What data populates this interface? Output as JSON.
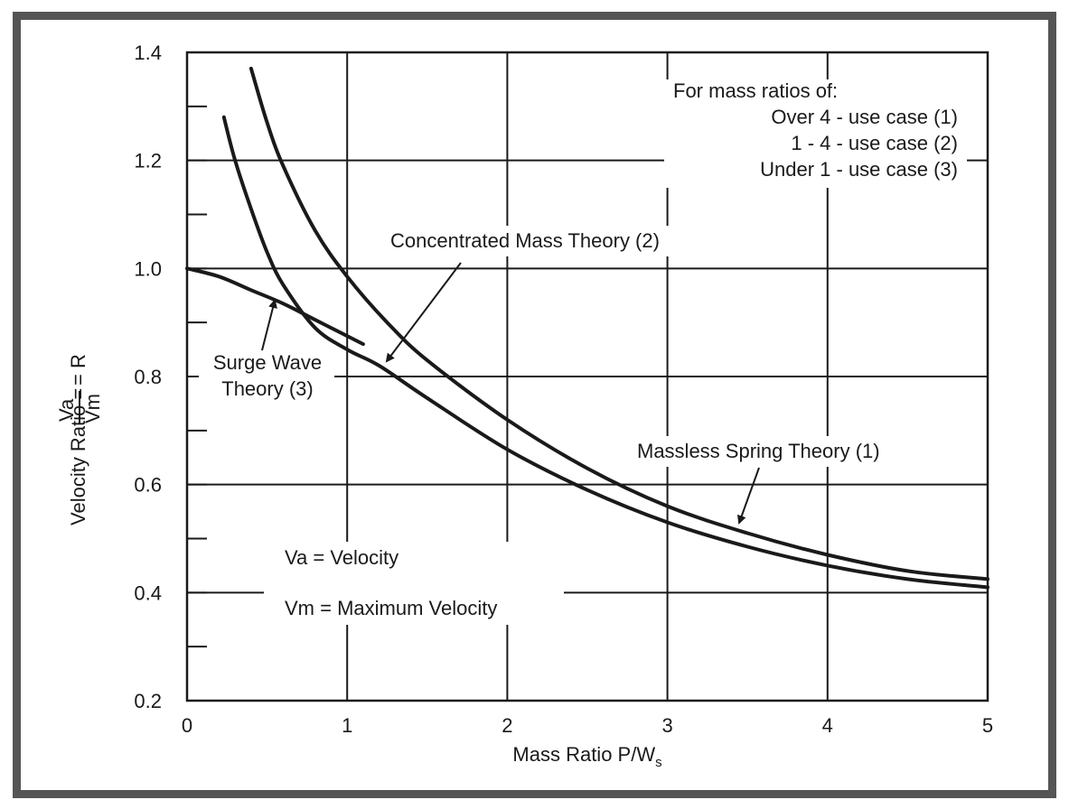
{
  "chart_data": {
    "type": "line",
    "xlabel": "Mass Ratio P/W",
    "xlabel_subscript": "s",
    "ylabel_prefix": "Velocity Ratio =",
    "ylabel_num": "Va",
    "ylabel_den": "Vm",
    "ylabel_suffix": "= R",
    "xlim": [
      0,
      5
    ],
    "ylim": [
      0.2,
      1.4
    ],
    "x_ticks": [
      0,
      1,
      2,
      3,
      4,
      5
    ],
    "x_tick_labels": [
      "0",
      "1",
      "2",
      "3",
      "4",
      "5"
    ],
    "y_major_ticks": [
      0.2,
      0.4,
      0.6,
      0.8,
      1.0,
      1.2,
      1.4
    ],
    "y_tick_labels": [
      "0.2",
      "0.4",
      "0.6",
      "0.8",
      "1.0",
      "1.2",
      "1.4"
    ],
    "y_minor_ticks": [
      0.3,
      0.5,
      0.7,
      0.9,
      1.1,
      1.3
    ],
    "grid": true,
    "series": [
      {
        "id": "massless",
        "x": [
          0.4,
          0.5,
          0.6,
          0.8,
          1.0,
          1.25,
          1.5,
          2.0,
          2.5,
          3.0,
          3.5,
          4.0,
          4.5,
          5.0
        ],
        "values": [
          1.37,
          1.27,
          1.19,
          1.07,
          0.985,
          0.9,
          0.83,
          0.72,
          0.63,
          0.56,
          0.51,
          0.47,
          0.44,
          0.425
        ]
      },
      {
        "id": "concentrated",
        "x": [
          0.23,
          0.3,
          0.4,
          0.5,
          0.6,
          0.8,
          1.0,
          1.2,
          1.5,
          2.0,
          2.5,
          3.0,
          3.5,
          4.0,
          4.5,
          5.0
        ],
        "values": [
          1.28,
          1.2,
          1.11,
          1.03,
          0.97,
          0.89,
          0.85,
          0.82,
          0.76,
          0.665,
          0.59,
          0.53,
          0.485,
          0.45,
          0.425,
          0.41
        ]
      },
      {
        "id": "surge",
        "x": [
          0,
          0.2,
          0.4,
          0.6,
          0.8,
          1.0,
          1.1
        ],
        "values": [
          1.0,
          0.985,
          0.96,
          0.935,
          0.905,
          0.875,
          0.86
        ]
      }
    ],
    "annotations": {
      "header": "For mass ratios of:",
      "case1": "Over 4 - use case (1)",
      "case2": "1 - 4 - use case (2)",
      "case3": "Under 1 - use case (3)",
      "concentrated_label": "Concentrated Mass Theory (2)",
      "massless_label": "Massless Spring Theory (1)",
      "surge_label_line1": "Surge Wave",
      "surge_label_line2": "Theory (3)",
      "va_def": "Va = Velocity",
      "vm_def": "Vm = Maximum Velocity"
    }
  }
}
